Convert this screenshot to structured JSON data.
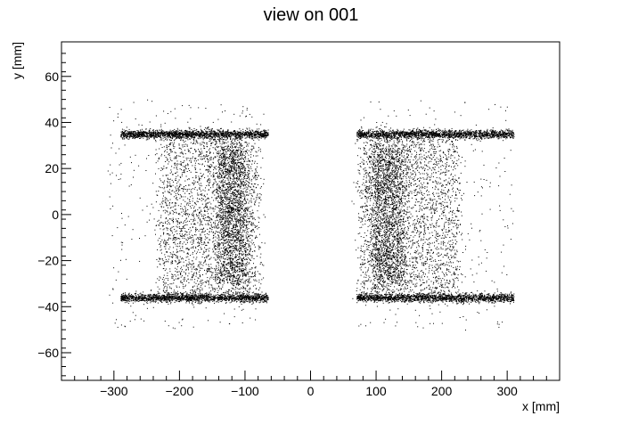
{
  "chart_data": {
    "type": "scatter",
    "title": "view on 001",
    "xlabel": "x [mm]",
    "ylabel": "y [mm]",
    "xlim": [
      -380,
      380
    ],
    "ylim": [
      -72,
      75
    ],
    "x_ticks": [
      -300,
      -200,
      -100,
      0,
      100,
      200,
      300
    ],
    "y_ticks": [
      -60,
      -40,
      -20,
      0,
      20,
      40,
      60
    ],
    "x_tick_labels": [
      "−300",
      "−200",
      "−100",
      "0",
      "100",
      "200",
      "300"
    ],
    "y_tick_labels": [
      "−60",
      "−40",
      "−20",
      "0",
      "20",
      "40",
      "60"
    ],
    "grid": false,
    "marker_color": "#000000",
    "series": [
      {
        "clusters": [
          {
            "kind": "bar",
            "x": [
              -140,
              -100
            ],
            "y": [
              -29,
              30
            ],
            "density": "high"
          },
          {
            "kind": "bar",
            "x": [
              95,
              140
            ],
            "y": [
              -30,
              30
            ],
            "density": "high"
          },
          {
            "kind": "box",
            "x": [
              -230,
              -80
            ],
            "y": [
              -35,
              35
            ],
            "density": "medium"
          },
          {
            "kind": "box",
            "x": [
              75,
              225
            ],
            "y": [
              -35,
              35
            ],
            "density": "medium"
          },
          {
            "kind": "line",
            "x": [
              -290,
              -65
            ],
            "y": 35,
            "density": "high"
          },
          {
            "kind": "line",
            "x": [
              -290,
              -65
            ],
            "y": -36,
            "density": "high"
          },
          {
            "kind": "line",
            "x": [
              70,
              310
            ],
            "y": 35,
            "density": "high"
          },
          {
            "kind": "line",
            "x": [
              70,
              310
            ],
            "y": -36,
            "density": "high"
          }
        ]
      }
    ]
  }
}
